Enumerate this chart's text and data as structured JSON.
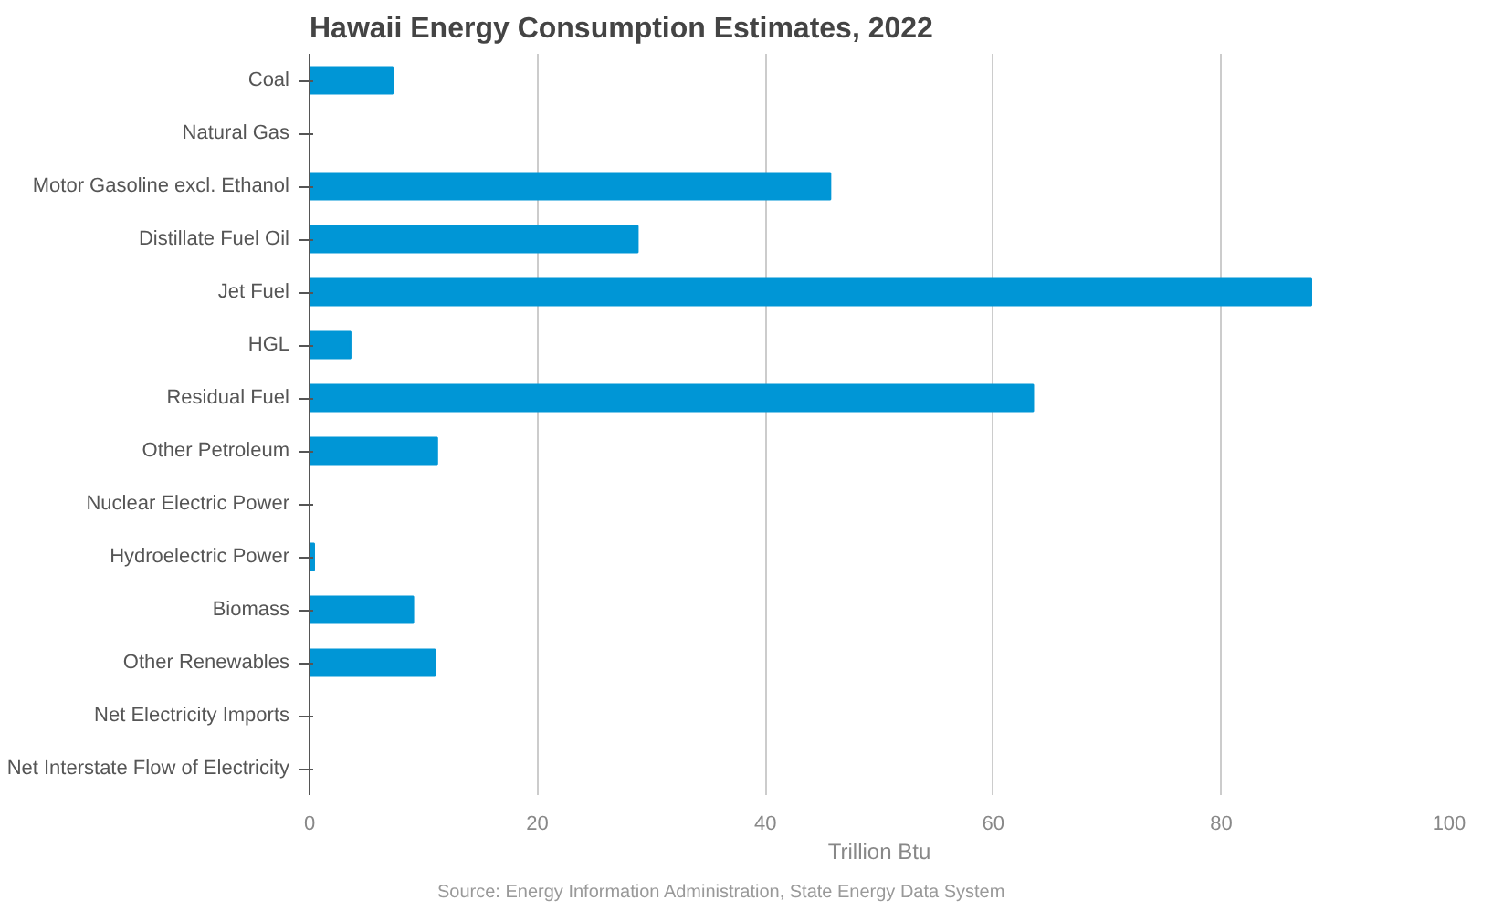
{
  "chart_data": {
    "type": "bar",
    "orientation": "horizontal",
    "title": "Hawaii Energy Consumption Estimates, 2022",
    "xlabel": "Trillion Btu",
    "categories": [
      "Coal",
      "Natural Gas",
      "Motor Gasoline excl. Ethanol",
      "Distillate Fuel Oil",
      "Jet Fuel",
      "HGL",
      "Residual Fuel",
      "Other Petroleum",
      "Nuclear Electric Power",
      "Hydroelectric Power",
      "Biomass",
      "Other Renewables",
      "Net Electricity Imports",
      "Net Interstate Flow of Electricity"
    ],
    "values": [
      7.3,
      0,
      45.7,
      28.8,
      87.9,
      3.6,
      63.5,
      11.2,
      0,
      0.4,
      9.1,
      11.0,
      0,
      0
    ],
    "color": "#0096d6",
    "xlim": [
      0,
      100
    ],
    "xticks": [
      0,
      20,
      40,
      60,
      80,
      100
    ],
    "grid": "x",
    "annotations": [
      "Source: Energy Information Administration, State Energy Data System"
    ]
  }
}
